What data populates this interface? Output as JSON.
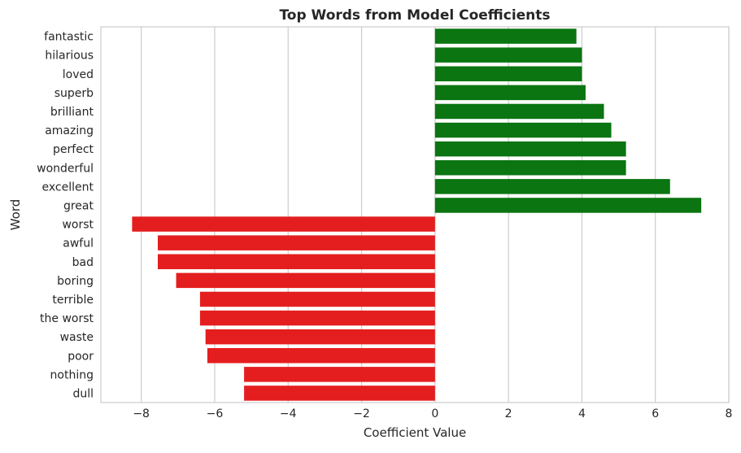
{
  "chart_data": {
    "type": "bar",
    "orientation": "horizontal",
    "title": "Top Words from Model Coefficients",
    "xlabel": "Coefficient Value",
    "ylabel": "Word",
    "xlim": [
      -9.1,
      8.0
    ],
    "xticks": [
      -8,
      -6,
      -4,
      -2,
      0,
      2,
      4,
      6,
      8
    ],
    "xtick_labels": [
      "−8",
      "−6",
      "−4",
      "−2",
      "0",
      "2",
      "4",
      "6",
      "8"
    ],
    "grid": "vertical",
    "categories": [
      "fantastic",
      "hilarious",
      "loved",
      "superb",
      "brilliant",
      "amazing",
      "perfect",
      "wonderful",
      "excellent",
      "great",
      "worst",
      "awful",
      "bad",
      "boring",
      "terrible",
      "the worst",
      "waste",
      "poor",
      "nothing",
      "dull"
    ],
    "values": [
      3.85,
      4.0,
      4.0,
      4.1,
      4.6,
      4.8,
      5.2,
      5.2,
      6.4,
      7.25,
      -8.25,
      -7.55,
      -7.55,
      -7.05,
      -6.4,
      -6.4,
      -6.25,
      -6.2,
      -5.2,
      -5.2
    ],
    "colors": {
      "positive": "#0a7511",
      "negative": "#e41e1e"
    }
  }
}
